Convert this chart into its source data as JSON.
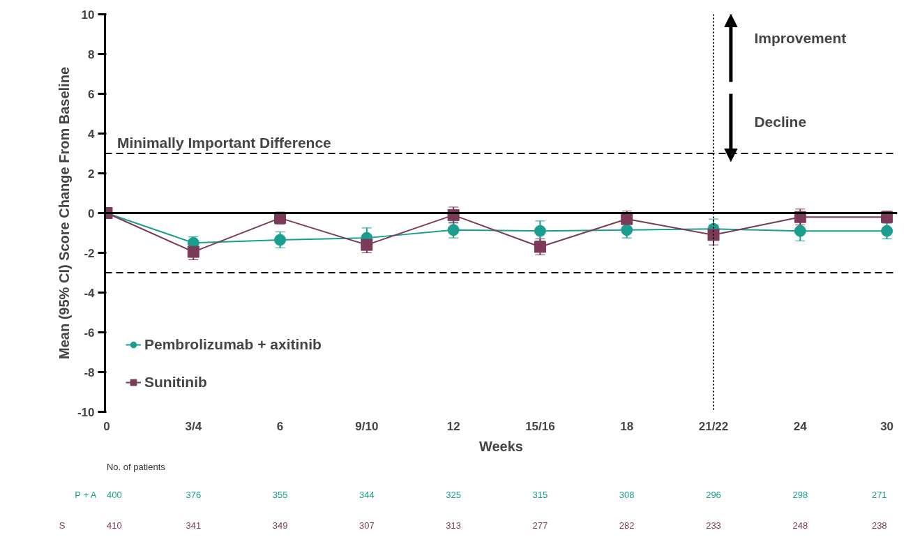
{
  "chart_data": {
    "type": "line",
    "ylabel": "Mean (95% CI) Score Change From Baseline",
    "xlabel": "Weeks",
    "categories": [
      "0",
      "3/4",
      "6",
      "9/10",
      "12",
      "15/16",
      "18",
      "21/22",
      "24",
      "30"
    ],
    "ylim": [
      -10,
      10
    ],
    "yticks": [
      -10,
      -8,
      -6,
      -4,
      -2,
      0,
      2,
      4,
      6,
      8,
      10
    ],
    "series": [
      {
        "name": "Pembrolizumab + axitinib",
        "color": "#1a9e8f",
        "marker": "circle",
        "values": [
          0,
          -1.5,
          -1.35,
          -1.25,
          -0.85,
          -0.9,
          -0.85,
          -0.8,
          -0.9,
          -0.9
        ],
        "errors": [
          null,
          0.3,
          0.4,
          0.5,
          0.4,
          0.5,
          0.4,
          0.5,
          0.5,
          0.4
        ]
      },
      {
        "name": "Sunitinib",
        "color": "#7b3a57",
        "marker": "square",
        "values": [
          0,
          -1.95,
          -0.25,
          -1.6,
          -0.1,
          -1.7,
          -0.3,
          -1.1,
          -0.2,
          -0.2
        ],
        "errors": [
          null,
          0.4,
          0.3,
          0.4,
          0.4,
          0.4,
          0.4,
          0.5,
          0.4,
          0.3
        ]
      }
    ],
    "ref_lines": [
      {
        "axis": "y",
        "value": 3,
        "label": "Minimally Important Difference",
        "line_style": "dashed",
        "color": "#000000"
      },
      {
        "axis": "y",
        "value": -3,
        "line_style": "dashed",
        "color": "#000000"
      },
      {
        "axis": "y",
        "value": 0,
        "line_style": "solid",
        "color": "#000000"
      },
      {
        "axis": "x",
        "value": "21/22",
        "line_style": "dotted",
        "color": "#000000"
      }
    ],
    "annotations": [
      "Improvement",
      "Decline",
      "No. of patients",
      "P + A",
      "400",
      "376",
      "355",
      "344",
      "325",
      "315",
      "308",
      "296",
      "298",
      "271",
      "S",
      "410",
      "341",
      "349",
      "307",
      "313",
      "277",
      "282",
      "233",
      "248",
      "238"
    ],
    "legend": "bottom left",
    "grid": false
  }
}
